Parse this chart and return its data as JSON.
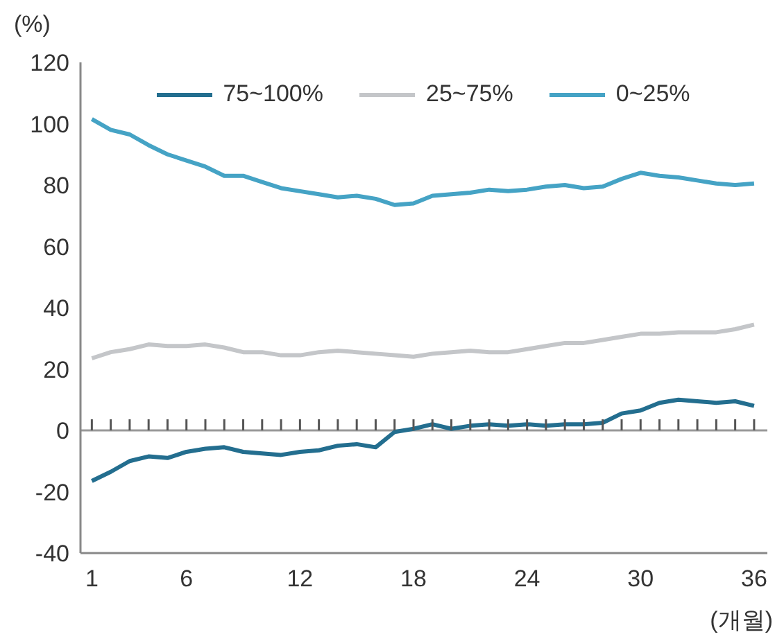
{
  "chart_data": {
    "type": "line",
    "xlabel": "(개월)",
    "ylabel": "(%)",
    "x": [
      1,
      2,
      3,
      4,
      5,
      6,
      7,
      8,
      9,
      10,
      11,
      12,
      13,
      14,
      15,
      16,
      17,
      18,
      19,
      20,
      21,
      22,
      23,
      24,
      25,
      26,
      27,
      28,
      29,
      30,
      31,
      32,
      33,
      34,
      35,
      36
    ],
    "series": [
      {
        "name": "75~100%",
        "color": "#236e8f",
        "values": [
          -16.5,
          -13.5,
          -10,
          -8.5,
          -9,
          -7,
          -6,
          -5.5,
          -7,
          -7.5,
          -8,
          -7,
          -6.5,
          -5,
          -4.5,
          -5.5,
          -0.5,
          0.5,
          2,
          0.5,
          1.5,
          2,
          1.5,
          2,
          1.5,
          2,
          2,
          2.5,
          5.5,
          6.5,
          9,
          10,
          9.5,
          9,
          9.5,
          8
        ]
      },
      {
        "name": "25~75%",
        "color": "#c4c6c9",
        "values": [
          23.5,
          25.5,
          26.5,
          28,
          27.5,
          27.5,
          28,
          27,
          25.5,
          25.5,
          24.5,
          24.5,
          25.5,
          26,
          25.5,
          25,
          24.5,
          24,
          25,
          25.5,
          26,
          25.5,
          25.5,
          26.5,
          27.5,
          28.5,
          28.5,
          29.5,
          30.5,
          31.5,
          31.5,
          32,
          32,
          32,
          33,
          34.5
        ]
      },
      {
        "name": "0~25%",
        "color": "#45a3c5",
        "values": [
          101.5,
          98,
          96.5,
          93,
          90,
          88,
          86,
          83,
          83,
          81,
          79,
          78,
          77,
          76,
          76.5,
          75.5,
          73.5,
          74,
          76.5,
          77,
          77.5,
          78.5,
          78,
          78.5,
          79.5,
          80,
          79,
          79.5,
          82,
          84,
          83,
          82.5,
          81.5,
          80.5,
          80,
          80.5
        ]
      }
    ],
    "xlim": [
      0.4,
      36.7
    ],
    "xticks": [
      1,
      {
        "value": 2,
        "label": null
      },
      {
        "value": 3,
        "label": null
      },
      {
        "value": 4,
        "label": null
      },
      {
        "value": 5,
        "label": null
      },
      6,
      {
        "value": 7,
        "label": null
      },
      {
        "value": 8,
        "label": null
      },
      {
        "value": 9,
        "label": null
      },
      {
        "value": 10,
        "label": null
      },
      {
        "value": 11,
        "label": null
      },
      12,
      {
        "value": 13,
        "label": null
      },
      {
        "value": 14,
        "label": null
      },
      {
        "value": 15,
        "label": null
      },
      {
        "value": 16,
        "label": null
      },
      {
        "value": 17,
        "label": null
      },
      18,
      {
        "value": 19,
        "label": null
      },
      {
        "value": 20,
        "label": null
      },
      {
        "value": 21,
        "label": null
      },
      {
        "value": 22,
        "label": null
      },
      {
        "value": 23,
        "label": null
      },
      24,
      {
        "value": 25,
        "label": null
      },
      {
        "value": 26,
        "label": null
      },
      {
        "value": 27,
        "label": null
      },
      {
        "value": 28,
        "label": null
      },
      {
        "value": 29,
        "label": null
      },
      30,
      {
        "value": 31,
        "label": null
      },
      {
        "value": 32,
        "label": null
      },
      {
        "value": 33,
        "label": null
      },
      {
        "value": 34,
        "label": null
      },
      {
        "value": 35,
        "label": null
      },
      36
    ],
    "ylim": [
      -40,
      120
    ],
    "yticks": [
      -40,
      -20,
      0,
      20,
      40,
      60,
      80,
      100,
      120
    ],
    "ref_lines": [
      {
        "axis": "y",
        "value": 0,
        "color": "#999999"
      }
    ],
    "grid": false,
    "legend": "top",
    "marker": "none",
    "line_style": "solid"
  }
}
